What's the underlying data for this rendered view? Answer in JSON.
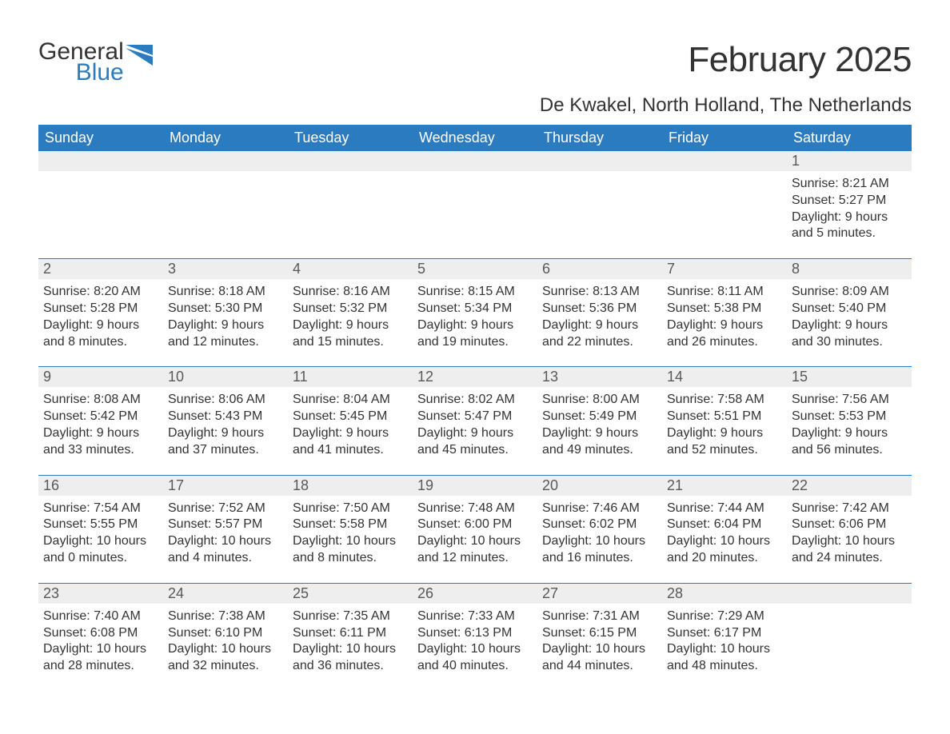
{
  "brand": {
    "general": "General",
    "blue": "Blue",
    "icon_color": "#2a7bbf"
  },
  "title": "February 2025",
  "location": "De Kwakel, North Holland, The Netherlands",
  "colors": {
    "header_bg": "#2a7bbf",
    "header_fg": "#ffffff",
    "daynum_bg": "#eeeeee",
    "daynum_fg": "#595959",
    "body_fg": "#333333",
    "rule": "#2a7bbf",
    "page_bg": "#ffffff"
  },
  "typography": {
    "title_fontsize": 44,
    "location_fontsize": 24,
    "weekday_fontsize": 18,
    "daynum_fontsize": 18,
    "body_fontsize": 16
  },
  "weekdays": [
    "Sunday",
    "Monday",
    "Tuesday",
    "Wednesday",
    "Thursday",
    "Friday",
    "Saturday"
  ],
  "weeks": [
    [
      {
        "n": "",
        "sr": "",
        "ss": "",
        "dl": ""
      },
      {
        "n": "",
        "sr": "",
        "ss": "",
        "dl": ""
      },
      {
        "n": "",
        "sr": "",
        "ss": "",
        "dl": ""
      },
      {
        "n": "",
        "sr": "",
        "ss": "",
        "dl": ""
      },
      {
        "n": "",
        "sr": "",
        "ss": "",
        "dl": ""
      },
      {
        "n": "",
        "sr": "",
        "ss": "",
        "dl": ""
      },
      {
        "n": "1",
        "sr": "Sunrise: 8:21 AM",
        "ss": "Sunset: 5:27 PM",
        "dl": "Daylight: 9 hours and 5 minutes."
      }
    ],
    [
      {
        "n": "2",
        "sr": "Sunrise: 8:20 AM",
        "ss": "Sunset: 5:28 PM",
        "dl": "Daylight: 9 hours and 8 minutes."
      },
      {
        "n": "3",
        "sr": "Sunrise: 8:18 AM",
        "ss": "Sunset: 5:30 PM",
        "dl": "Daylight: 9 hours and 12 minutes."
      },
      {
        "n": "4",
        "sr": "Sunrise: 8:16 AM",
        "ss": "Sunset: 5:32 PM",
        "dl": "Daylight: 9 hours and 15 minutes."
      },
      {
        "n": "5",
        "sr": "Sunrise: 8:15 AM",
        "ss": "Sunset: 5:34 PM",
        "dl": "Daylight: 9 hours and 19 minutes."
      },
      {
        "n": "6",
        "sr": "Sunrise: 8:13 AM",
        "ss": "Sunset: 5:36 PM",
        "dl": "Daylight: 9 hours and 22 minutes."
      },
      {
        "n": "7",
        "sr": "Sunrise: 8:11 AM",
        "ss": "Sunset: 5:38 PM",
        "dl": "Daylight: 9 hours and 26 minutes."
      },
      {
        "n": "8",
        "sr": "Sunrise: 8:09 AM",
        "ss": "Sunset: 5:40 PM",
        "dl": "Daylight: 9 hours and 30 minutes."
      }
    ],
    [
      {
        "n": "9",
        "sr": "Sunrise: 8:08 AM",
        "ss": "Sunset: 5:42 PM",
        "dl": "Daylight: 9 hours and 33 minutes."
      },
      {
        "n": "10",
        "sr": "Sunrise: 8:06 AM",
        "ss": "Sunset: 5:43 PM",
        "dl": "Daylight: 9 hours and 37 minutes."
      },
      {
        "n": "11",
        "sr": "Sunrise: 8:04 AM",
        "ss": "Sunset: 5:45 PM",
        "dl": "Daylight: 9 hours and 41 minutes."
      },
      {
        "n": "12",
        "sr": "Sunrise: 8:02 AM",
        "ss": "Sunset: 5:47 PM",
        "dl": "Daylight: 9 hours and 45 minutes."
      },
      {
        "n": "13",
        "sr": "Sunrise: 8:00 AM",
        "ss": "Sunset: 5:49 PM",
        "dl": "Daylight: 9 hours and 49 minutes."
      },
      {
        "n": "14",
        "sr": "Sunrise: 7:58 AM",
        "ss": "Sunset: 5:51 PM",
        "dl": "Daylight: 9 hours and 52 minutes."
      },
      {
        "n": "15",
        "sr": "Sunrise: 7:56 AM",
        "ss": "Sunset: 5:53 PM",
        "dl": "Daylight: 9 hours and 56 minutes."
      }
    ],
    [
      {
        "n": "16",
        "sr": "Sunrise: 7:54 AM",
        "ss": "Sunset: 5:55 PM",
        "dl": "Daylight: 10 hours and 0 minutes."
      },
      {
        "n": "17",
        "sr": "Sunrise: 7:52 AM",
        "ss": "Sunset: 5:57 PM",
        "dl": "Daylight: 10 hours and 4 minutes."
      },
      {
        "n": "18",
        "sr": "Sunrise: 7:50 AM",
        "ss": "Sunset: 5:58 PM",
        "dl": "Daylight: 10 hours and 8 minutes."
      },
      {
        "n": "19",
        "sr": "Sunrise: 7:48 AM",
        "ss": "Sunset: 6:00 PM",
        "dl": "Daylight: 10 hours and 12 minutes."
      },
      {
        "n": "20",
        "sr": "Sunrise: 7:46 AM",
        "ss": "Sunset: 6:02 PM",
        "dl": "Daylight: 10 hours and 16 minutes."
      },
      {
        "n": "21",
        "sr": "Sunrise: 7:44 AM",
        "ss": "Sunset: 6:04 PM",
        "dl": "Daylight: 10 hours and 20 minutes."
      },
      {
        "n": "22",
        "sr": "Sunrise: 7:42 AM",
        "ss": "Sunset: 6:06 PM",
        "dl": "Daylight: 10 hours and 24 minutes."
      }
    ],
    [
      {
        "n": "23",
        "sr": "Sunrise: 7:40 AM",
        "ss": "Sunset: 6:08 PM",
        "dl": "Daylight: 10 hours and 28 minutes."
      },
      {
        "n": "24",
        "sr": "Sunrise: 7:38 AM",
        "ss": "Sunset: 6:10 PM",
        "dl": "Daylight: 10 hours and 32 minutes."
      },
      {
        "n": "25",
        "sr": "Sunrise: 7:35 AM",
        "ss": "Sunset: 6:11 PM",
        "dl": "Daylight: 10 hours and 36 minutes."
      },
      {
        "n": "26",
        "sr": "Sunrise: 7:33 AM",
        "ss": "Sunset: 6:13 PM",
        "dl": "Daylight: 10 hours and 40 minutes."
      },
      {
        "n": "27",
        "sr": "Sunrise: 7:31 AM",
        "ss": "Sunset: 6:15 PM",
        "dl": "Daylight: 10 hours and 44 minutes."
      },
      {
        "n": "28",
        "sr": "Sunrise: 7:29 AM",
        "ss": "Sunset: 6:17 PM",
        "dl": "Daylight: 10 hours and 48 minutes."
      },
      {
        "n": "",
        "sr": "",
        "ss": "",
        "dl": ""
      }
    ]
  ]
}
